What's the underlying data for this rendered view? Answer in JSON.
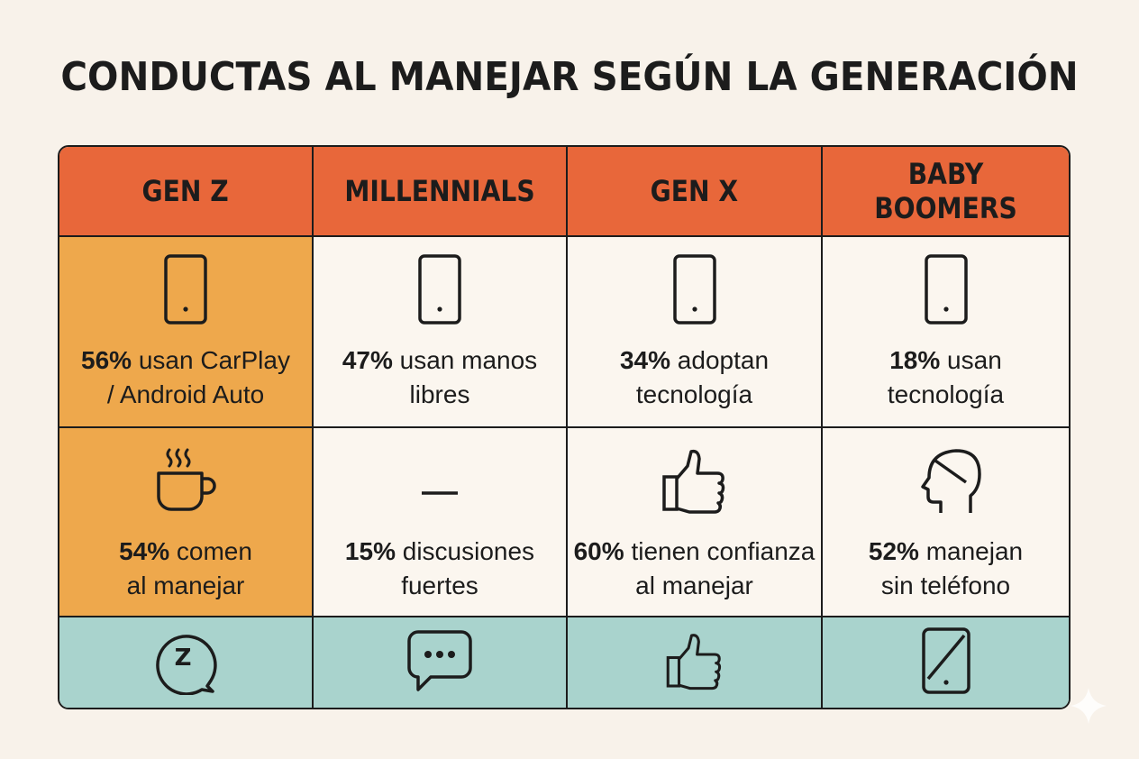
{
  "title": "CONDUCTAS AL MANEJAR SEGÚN LA GENERACIÓN",
  "colors": {
    "header": "#e8673a",
    "highlight": "#eea84c",
    "footer": "#a9d3cd",
    "cell": "#fbf6ef",
    "background": "#f8f2ea"
  },
  "headers": [
    "GEN Z",
    "MILLENNIALS",
    "GEN X",
    "BABY BOOMERS"
  ],
  "row1": [
    {
      "icon": "phone-icon",
      "pct": "56%",
      "line1": "usan CarPlay",
      "line2": "/ Android Auto"
    },
    {
      "icon": "phone-icon",
      "pct": "47%",
      "line1": "usan manos",
      "line2": "libres"
    },
    {
      "icon": "phone-icon",
      "pct": "34%",
      "line1": "adoptan",
      "line2": "tecnología"
    },
    {
      "icon": "phone-icon",
      "pct": "18%",
      "line1": "usan",
      "line2": "tecnología"
    }
  ],
  "row2": [
    {
      "icon": "coffee-cup-icon",
      "pct": "54%",
      "line1": "comen",
      "line2": "al manejar"
    },
    {
      "icon": "dash-icon",
      "pct": "15%",
      "line1": "discusiones",
      "line2": "fuertes"
    },
    {
      "icon": "thumbs-up-icon",
      "pct": "60%",
      "line1": "tienen confianza",
      "line2": "al manejar"
    },
    {
      "icon": "head-icon",
      "pct": "52%",
      "line1": "manejan",
      "line2": "sin teléfono"
    }
  ],
  "row3": [
    {
      "icon": "sleep-bubble-icon",
      "glyph": "Z"
    },
    {
      "icon": "chat-bubble-icon"
    },
    {
      "icon": "thumbs-up-icon"
    },
    {
      "icon": "phone-off-icon"
    }
  ]
}
